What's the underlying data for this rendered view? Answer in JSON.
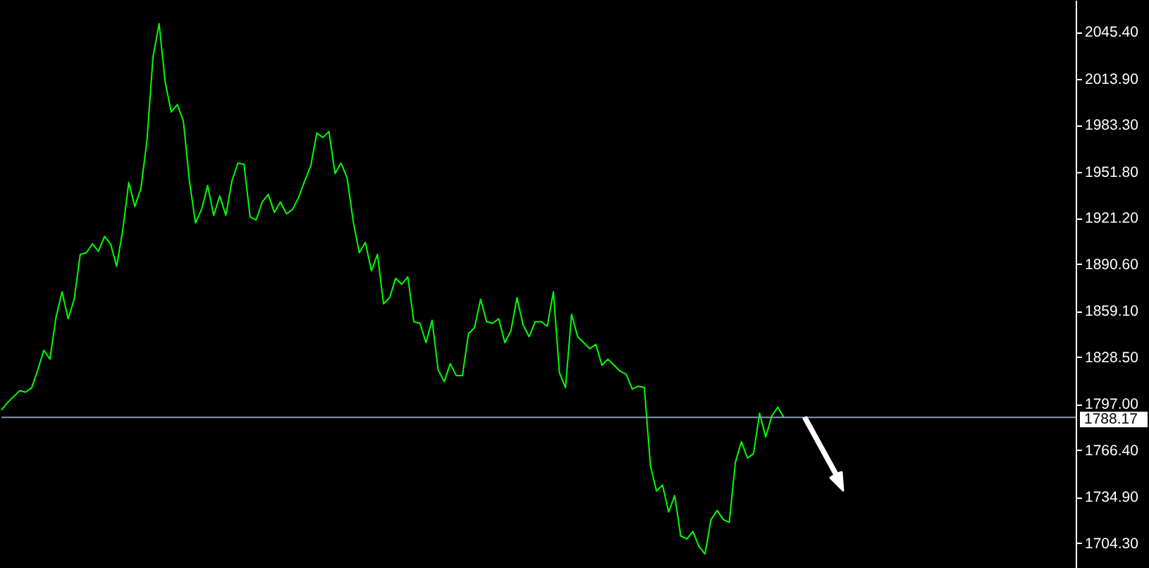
{
  "chart_data": {
    "type": "line",
    "color": "#00ff00",
    "categories": [
      null,
      null,
      null,
      null,
      null,
      null,
      null,
      null,
      null,
      null,
      null,
      null,
      null,
      null,
      null,
      null,
      null,
      null,
      null,
      null,
      null,
      null,
      null,
      null,
      null,
      null,
      null,
      null,
      null,
      null,
      null,
      null,
      null,
      null,
      null,
      null,
      null,
      null,
      null,
      null,
      null,
      null,
      null,
      null,
      null,
      null,
      null,
      null,
      null,
      null,
      null,
      null,
      null,
      null,
      null,
      null,
      null,
      null,
      null,
      null,
      null,
      null,
      null,
      null,
      null,
      null,
      null,
      null,
      null,
      null,
      null,
      null,
      null,
      null,
      null,
      null,
      null,
      null,
      null,
      null,
      null,
      null,
      null,
      null,
      null,
      null,
      null,
      null,
      null,
      null,
      null,
      null,
      null,
      null,
      null,
      null,
      null,
      null,
      null,
      null,
      null,
      null,
      null,
      null,
      null,
      null,
      null,
      null,
      null,
      null,
      null,
      null,
      null,
      null,
      null,
      null,
      null,
      null,
      null,
      null,
      null,
      null,
      null,
      null,
      null,
      null,
      null,
      null,
      null,
      null
    ],
    "values": [
      1793,
      1798,
      1802,
      1806,
      1805,
      1808,
      1820,
      1833,
      1827,
      1855,
      1872,
      1854,
      1867,
      1897,
      1898,
      1904,
      1899,
      1909,
      1904,
      1889,
      1913,
      1945,
      1929,
      1941,
      1973,
      2029,
      2051,
      2012,
      1992,
      1997,
      1986,
      1946,
      1918,
      1927,
      1943,
      1923,
      1936,
      1923,
      1946,
      1958,
      1957,
      1922,
      1920,
      1932,
      1937,
      1925,
      1932,
      1924,
      1927,
      1935,
      1946,
      1956,
      1978,
      1975,
      1979,
      1951,
      1958,
      1948,
      1919,
      1898,
      1905,
      1886,
      1897,
      1864,
      1868,
      1881,
      1877,
      1882,
      1852,
      1851,
      1838,
      1853,
      1820,
      1812,
      1824,
      1816,
      1816,
      1844,
      1848,
      1867,
      1852,
      1851,
      1854,
      1838,
      1846,
      1868,
      1850,
      1842,
      1852,
      1852,
      1849,
      1872,
      1818,
      1808,
      1857,
      1842,
      1838,
      1834,
      1837,
      1823,
      1827,
      1823,
      1819,
      1817,
      1807,
      1809,
      1808,
      1756,
      1739,
      1743,
      1725,
      1736,
      1709,
      1707,
      1712,
      1702,
      1697,
      1720,
      1726,
      1720,
      1718,
      1758,
      1772,
      1761,
      1764,
      1791,
      1775,
      1789,
      1795,
      1788
    ],
    "ylim": [
      1687.6,
      2066.8
    ],
    "yticks": [
      {
        "value": 1704.3,
        "label": "1704.30"
      },
      {
        "value": 1734.9,
        "label": "1734.90"
      },
      {
        "value": 1766.4,
        "label": "1766.40"
      },
      {
        "value": 1797,
        "label": "1797.00"
      },
      {
        "value": 1828.5,
        "label": "1828.50"
      },
      {
        "value": 1859.1,
        "label": "1859.10"
      },
      {
        "value": 1890.6,
        "label": "1890.60"
      },
      {
        "value": 1921.2,
        "label": "1921.20"
      },
      {
        "value": 1951.8,
        "label": "1951.80"
      },
      {
        "value": 1983.3,
        "label": "1983.30"
      },
      {
        "value": 2013.9,
        "label": "2013.90"
      },
      {
        "value": 2045.4,
        "label": "2045.40"
      }
    ],
    "ref_lines": [
      {
        "axis": "y",
        "value": 1788.17,
        "label": "1788.17",
        "color": "#8a9bb0"
      }
    ],
    "tick_labels": "y"
  }
}
